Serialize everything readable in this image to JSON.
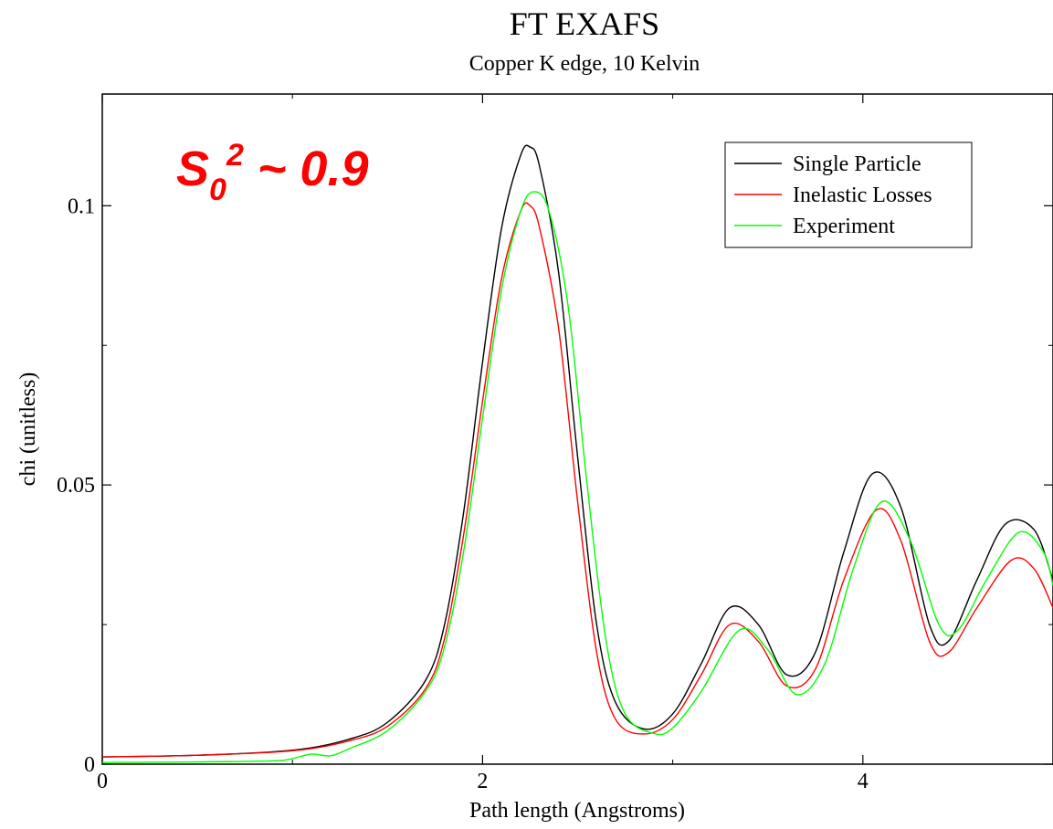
{
  "chart_data": {
    "type": "line",
    "title": "FT EXAFS",
    "subtitle": "Copper K edge, 10 Kelvin",
    "xlabel": "Path length (Angstroms)",
    "ylabel": "chi (unitless)",
    "xlim": [
      0,
      5
    ],
    "ylim": [
      0,
      0.12
    ],
    "x_ticks": [
      0,
      2,
      4
    ],
    "x_tick_labels": [
      "0",
      "2",
      "4"
    ],
    "y_ticks": [
      0,
      0.05,
      0.1
    ],
    "y_tick_labels": [
      "0",
      "0.05",
      "0.1"
    ],
    "grid": false,
    "legend_position": "top-right",
    "annotation": {
      "base": "S",
      "subscript": "0",
      "superscript": "2",
      "text": " ~ 0.9",
      "color": "#ff0000"
    },
    "series": [
      {
        "name": "Single Particle",
        "color": "#000000",
        "points": [
          [
            0,
            0.0013
          ],
          [
            0.5,
            0.0016
          ],
          [
            1.0,
            0.0025
          ],
          [
            1.3,
            0.0045
          ],
          [
            1.5,
            0.0075
          ],
          [
            1.7,
            0.015
          ],
          [
            1.8,
            0.025
          ],
          [
            1.9,
            0.045
          ],
          [
            2.0,
            0.072
          ],
          [
            2.1,
            0.096
          ],
          [
            2.2,
            0.109
          ],
          [
            2.25,
            0.1105
          ],
          [
            2.3,
            0.107
          ],
          [
            2.4,
            0.088
          ],
          [
            2.5,
            0.055
          ],
          [
            2.6,
            0.025
          ],
          [
            2.7,
            0.011
          ],
          [
            2.85,
            0.0063
          ],
          [
            3.0,
            0.009
          ],
          [
            3.15,
            0.018
          ],
          [
            3.3,
            0.028
          ],
          [
            3.45,
            0.025
          ],
          [
            3.6,
            0.016
          ],
          [
            3.75,
            0.02
          ],
          [
            3.9,
            0.038
          ],
          [
            4.05,
            0.052
          ],
          [
            4.2,
            0.046
          ],
          [
            4.35,
            0.025
          ],
          [
            4.45,
            0.022
          ],
          [
            4.6,
            0.033
          ],
          [
            4.75,
            0.043
          ],
          [
            4.9,
            0.042
          ],
          [
            5.0,
            0.033
          ]
        ]
      },
      {
        "name": "Inelastic Losses",
        "color": "#ff0000",
        "points": [
          [
            0,
            0.0013
          ],
          [
            0.5,
            0.0016
          ],
          [
            1.0,
            0.0024
          ],
          [
            1.3,
            0.0042
          ],
          [
            1.5,
            0.0068
          ],
          [
            1.7,
            0.0135
          ],
          [
            1.8,
            0.0225
          ],
          [
            1.9,
            0.041
          ],
          [
            2.0,
            0.065
          ],
          [
            2.1,
            0.087
          ],
          [
            2.2,
            0.099
          ],
          [
            2.25,
            0.1
          ],
          [
            2.3,
            0.096
          ],
          [
            2.4,
            0.078
          ],
          [
            2.5,
            0.047
          ],
          [
            2.6,
            0.02
          ],
          [
            2.7,
            0.008
          ],
          [
            2.85,
            0.0054
          ],
          [
            3.0,
            0.008
          ],
          [
            3.15,
            0.016
          ],
          [
            3.3,
            0.025
          ],
          [
            3.45,
            0.022
          ],
          [
            3.6,
            0.014
          ],
          [
            3.75,
            0.017
          ],
          [
            3.9,
            0.033
          ],
          [
            4.07,
            0.0455
          ],
          [
            4.2,
            0.04
          ],
          [
            4.35,
            0.022
          ],
          [
            4.45,
            0.02
          ],
          [
            4.6,
            0.028
          ],
          [
            4.78,
            0.0365
          ],
          [
            4.9,
            0.035
          ],
          [
            5.0,
            0.028
          ]
        ]
      },
      {
        "name": "Experiment",
        "color": "#00ff00",
        "points": [
          [
            0,
            0.0003
          ],
          [
            0.5,
            0.0004
          ],
          [
            0.9,
            0.0006
          ],
          [
            1.0,
            0.001
          ],
          [
            1.1,
            0.0018
          ],
          [
            1.2,
            0.0015
          ],
          [
            1.3,
            0.0028
          ],
          [
            1.5,
            0.006
          ],
          [
            1.7,
            0.013
          ],
          [
            1.8,
            0.021
          ],
          [
            1.9,
            0.038
          ],
          [
            2.0,
            0.062
          ],
          [
            2.1,
            0.085
          ],
          [
            2.2,
            0.099
          ],
          [
            2.27,
            0.1025
          ],
          [
            2.35,
            0.099
          ],
          [
            2.45,
            0.082
          ],
          [
            2.55,
            0.05
          ],
          [
            2.65,
            0.022
          ],
          [
            2.75,
            0.009
          ],
          [
            2.9,
            0.0055
          ],
          [
            3.0,
            0.0065
          ],
          [
            3.15,
            0.013
          ],
          [
            3.35,
            0.024
          ],
          [
            3.5,
            0.0205
          ],
          [
            3.65,
            0.0125
          ],
          [
            3.8,
            0.018
          ],
          [
            3.95,
            0.035
          ],
          [
            4.1,
            0.047
          ],
          [
            4.25,
            0.04
          ],
          [
            4.4,
            0.025
          ],
          [
            4.5,
            0.024
          ],
          [
            4.65,
            0.033
          ],
          [
            4.82,
            0.0415
          ],
          [
            4.95,
            0.038
          ],
          [
            5.0,
            0.032
          ]
        ]
      }
    ]
  }
}
